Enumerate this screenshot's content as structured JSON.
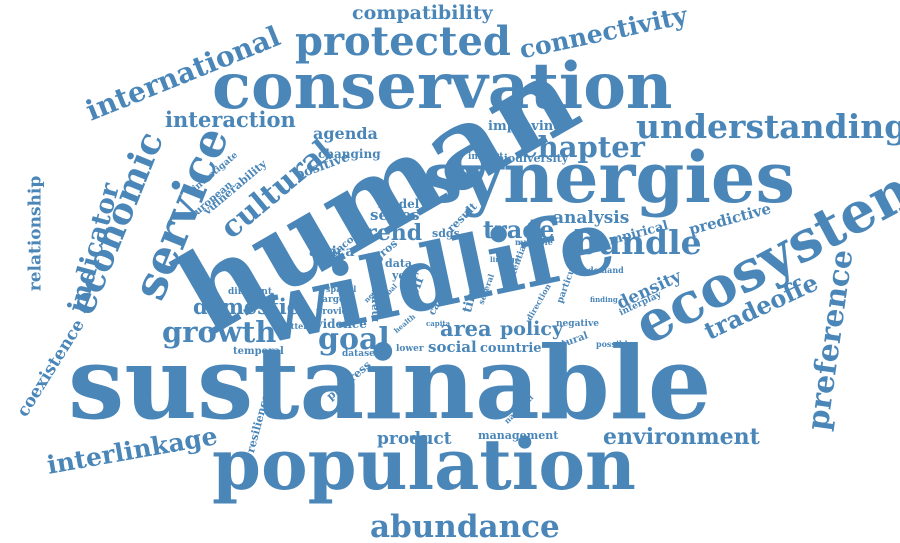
{
  "colors": {
    "word": "#4a86b8",
    "background": "#ffffff"
  },
  "words": [
    "compatibility",
    "connectivity",
    "protected",
    "international",
    "conservation",
    "interaction",
    "improving",
    "understanding",
    "human",
    "economic",
    "service",
    "agenda",
    "chapter",
    "synergies",
    "cultural",
    "changing",
    "insight",
    "biodiversity",
    "positive",
    "ecosystem",
    "relationship",
    "indicator",
    "investigate",
    "vulnerability",
    "european",
    "model",
    "series",
    "result",
    "analysis",
    "predictive",
    "empirical",
    "trade",
    "trend",
    "bundle",
    "africa",
    "income",
    "sdgs",
    "gros",
    "wildlife",
    "mammal",
    "data",
    "year",
    "time",
    "multiple",
    "different",
    "spatial",
    "target",
    "provide",
    "domestic",
    "density",
    "interplay",
    "tradeoffe",
    "preference",
    "growth",
    "goal",
    "evidence",
    "area",
    "policy",
    "social",
    "countrie",
    "pattern",
    "temporal",
    "coexistence",
    "dataset",
    "lower",
    "progress",
    "natural",
    "possible",
    "sustainable",
    "resilience",
    "national",
    "product",
    "management",
    "environment",
    "interlinkage",
    "population",
    "abundance",
    "present",
    "cause",
    "negative",
    "potential",
    "particular",
    "demand",
    "finding",
    "linkage",
    "several",
    "direction",
    "health",
    "capita",
    "never",
    "global",
    "off"
  ]
}
